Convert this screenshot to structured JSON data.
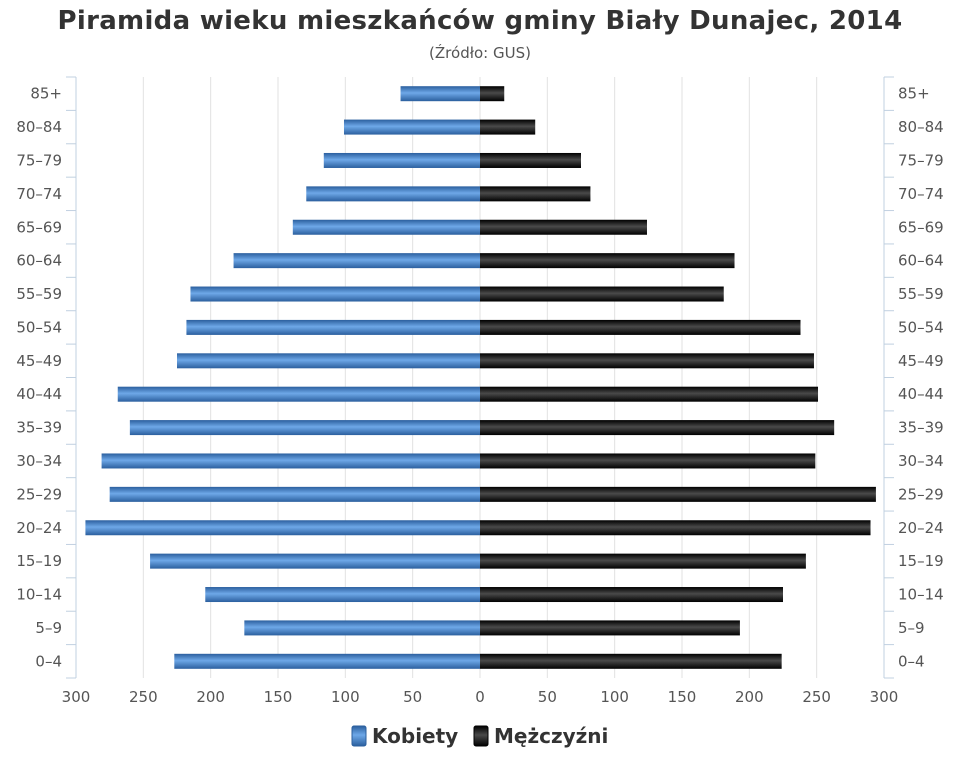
{
  "title": "Piramida wieku mieszkańców gminy Biały Dunajec, 2014",
  "subtitle": "(Źródło: GUS)",
  "colors": {
    "female": "#3a78c2",
    "male": "#1a1a1a",
    "grid": "#e2e2e2",
    "axis": "#c0d0e0"
  },
  "chart_data": {
    "type": "bar",
    "orientation": "horizontal-population-pyramid",
    "categories": [
      "85+",
      "80–84",
      "75–79",
      "70–74",
      "65–69",
      "60–64",
      "55–59",
      "50–54",
      "45–49",
      "40–44",
      "35–39",
      "30–34",
      "25–29",
      "20–24",
      "15–19",
      "10–14",
      "5–9",
      "0–4"
    ],
    "series": [
      {
        "name": "Kobiety",
        "side": "left",
        "values": [
          59,
          101,
          116,
          129,
          139,
          183,
          215,
          218,
          225,
          269,
          260,
          281,
          275,
          293,
          245,
          204,
          175,
          227
        ]
      },
      {
        "name": "Mężczyźni",
        "side": "right",
        "values": [
          18,
          41,
          75,
          82,
          124,
          189,
          181,
          238,
          248,
          251,
          263,
          249,
          294,
          290,
          242,
          225,
          193,
          224
        ]
      }
    ],
    "x_tick_labels": [
      "300",
      "250",
      "200",
      "150",
      "100",
      "50",
      "0",
      "50",
      "100",
      "150",
      "200",
      "250",
      "300"
    ],
    "xlim": [
      -300,
      300
    ],
    "grid": true,
    "legend_position": "bottom-center"
  }
}
